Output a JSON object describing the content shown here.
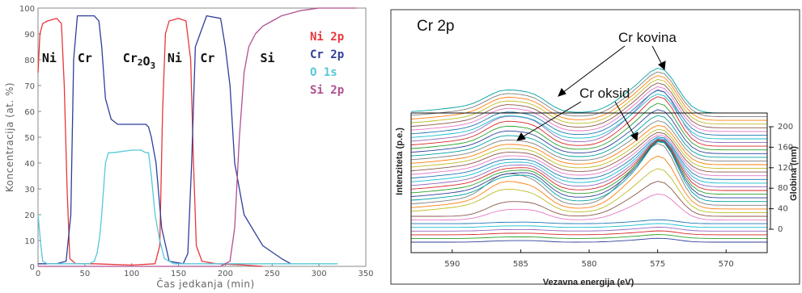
{
  "chart_data": [
    {
      "type": "line",
      "xlabel": "Čas jedkanja (min)",
      "ylabel": "Koncentracija (at. %)",
      "xlim": [
        0,
        350
      ],
      "ylim": [
        0,
        100
      ],
      "xticks": [
        "0",
        "50",
        "100",
        "150",
        "200",
        "250",
        "300",
        "350"
      ],
      "yticks": [
        "0",
        "10",
        "20",
        "30",
        "40",
        "50",
        "60",
        "70",
        "80",
        "90",
        "100"
      ],
      "regions": [
        {
          "label": "Ni",
          "x": 12
        },
        {
          "label": "Cr",
          "x": 50
        },
        {
          "label": "Cr2O3",
          "base": "Cr",
          "sub1": "2",
          "mid": "O",
          "sub2": "3",
          "x": 108
        },
        {
          "label": "Ni",
          "x": 146
        },
        {
          "label": "Cr",
          "x": 181
        },
        {
          "label": "Si",
          "x": 245
        }
      ],
      "series": [
        {
          "name": "Ni 2p",
          "color": "#e8363c",
          "x": [
            0,
            2,
            5,
            10,
            20,
            25,
            28,
            31,
            34,
            40,
            60,
            100,
            125,
            130,
            133,
            136,
            140,
            150,
            158,
            163,
            166,
            169,
            175,
            190,
            220,
            240
          ],
          "y": [
            75,
            90,
            94,
            95,
            96,
            94,
            70,
            30,
            3,
            1,
            1,
            0.5,
            1,
            8,
            60,
            90,
            95,
            96,
            95,
            80,
            40,
            8,
            2,
            1,
            0.5,
            0
          ]
        },
        {
          "name": "Cr 2p",
          "color": "#2e3f9a",
          "x": [
            0,
            20,
            30,
            35,
            38,
            42,
            60,
            65,
            68,
            72,
            78,
            85,
            100,
            115,
            118,
            121,
            126,
            132,
            140,
            155,
            160,
            164,
            168,
            180,
            195,
            200,
            205,
            210,
            220,
            240,
            260,
            270
          ],
          "y": [
            1,
            1,
            2,
            20,
            80,
            97,
            97,
            95,
            85,
            65,
            57,
            55,
            55,
            55,
            54,
            50,
            40,
            15,
            2,
            1,
            5,
            40,
            85,
            97,
            96,
            85,
            70,
            40,
            20,
            8,
            3,
            1
          ]
        },
        {
          "name": "O 1s",
          "color": "#56c8d8",
          "x": [
            0,
            3,
            5,
            10,
            40,
            55,
            60,
            63,
            66,
            68,
            70,
            72,
            75,
            80,
            100,
            110,
            115,
            118,
            121,
            125,
            130,
            135,
            140,
            145,
            200,
            320
          ],
          "y": [
            20,
            8,
            2,
            1,
            1,
            1,
            2,
            5,
            12,
            20,
            30,
            40,
            44,
            44,
            45,
            45,
            44,
            44,
            35,
            20,
            10,
            3,
            2,
            1,
            1,
            1
          ]
        },
        {
          "name": "Si 2p",
          "color": "#b0508f",
          "x": [
            0,
            140,
            160,
            195,
            205,
            210,
            215,
            220,
            225,
            232,
            240,
            250,
            260,
            280,
            300,
            340
          ],
          "y": [
            0,
            0,
            0,
            0,
            2,
            15,
            50,
            75,
            85,
            90,
            93,
            95,
            97,
            99,
            100,
            100
          ]
        }
      ]
    },
    {
      "type": "line",
      "title": "Cr 2p",
      "xlabel": "Vezavna energija (eV)",
      "ylabel": "Intenziteta (p.e.)",
      "zlabel": "Globina (nm)",
      "xlim": [
        593,
        567
      ],
      "xticks": [
        "590",
        "585",
        "580",
        "575",
        "570"
      ],
      "zticks": [
        "0",
        "40",
        "80",
        "120",
        "160",
        "200"
      ],
      "annotations": [
        "Cr kovina",
        "Cr oksid"
      ]
    }
  ]
}
